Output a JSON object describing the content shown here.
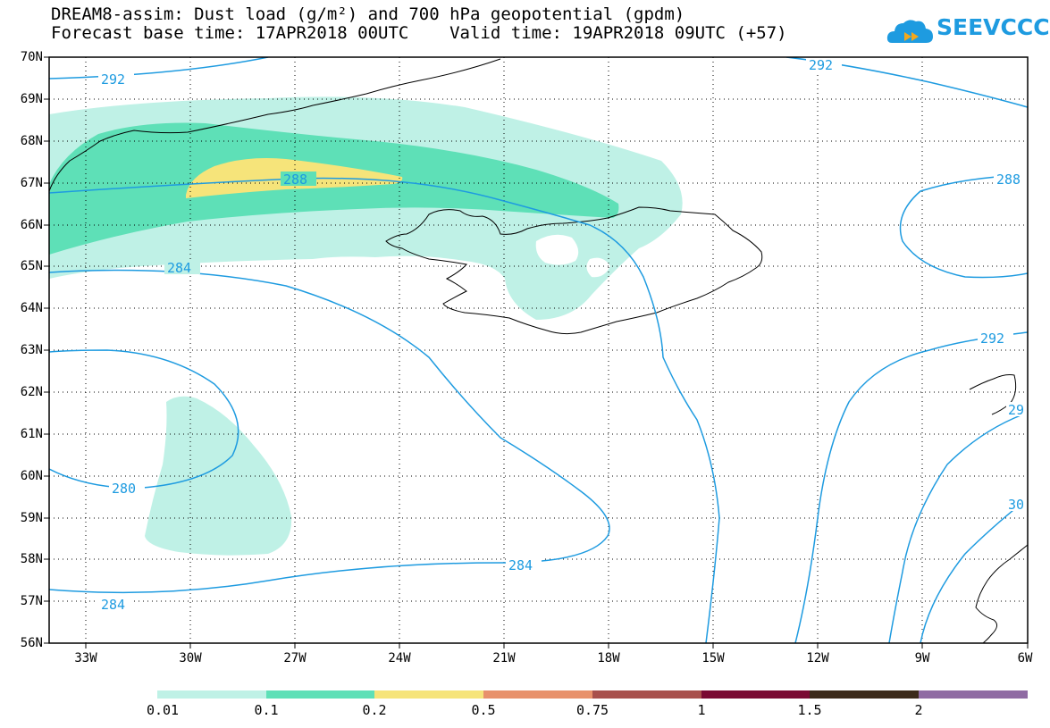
{
  "header": {
    "title_line1": "DREAM8-assim: Dust load (g/m²) and 700 hPa geopotential (gpdm)",
    "title_line2": "Forecast base time: 17APR2018 00UTC    Valid time: 19APR2018 09UTC (+57)",
    "logo_text": "SEEVCCC"
  },
  "map": {
    "lat_labels": [
      "70N",
      "69N",
      "68N",
      "67N",
      "66N",
      "65N",
      "64N",
      "63N",
      "62N",
      "61N",
      "60N",
      "59N",
      "58N",
      "57N",
      "56N"
    ],
    "lon_labels": [
      "33W",
      "30W",
      "27W",
      "24W",
      "21W",
      "18W",
      "15W",
      "12W",
      "9W",
      "6W"
    ],
    "contour_labels": [
      "292",
      "292",
      "288",
      "288",
      "284",
      "280",
      "284",
      "284",
      "292",
      "29",
      "30"
    ],
    "colors": {
      "contour": "#1e9be0",
      "coast": "#000000"
    }
  },
  "legend": {
    "labels": [
      "0.01",
      "0.1",
      "0.2",
      "0.5",
      "0.75",
      "1",
      "1.5",
      "2"
    ],
    "colors": [
      "#bff1e6",
      "#5ee0b7",
      "#f6e47a",
      "#e8916b",
      "#a8504c",
      "#7a0a33",
      "#3b2a1a",
      "#8f6ba3"
    ]
  }
}
